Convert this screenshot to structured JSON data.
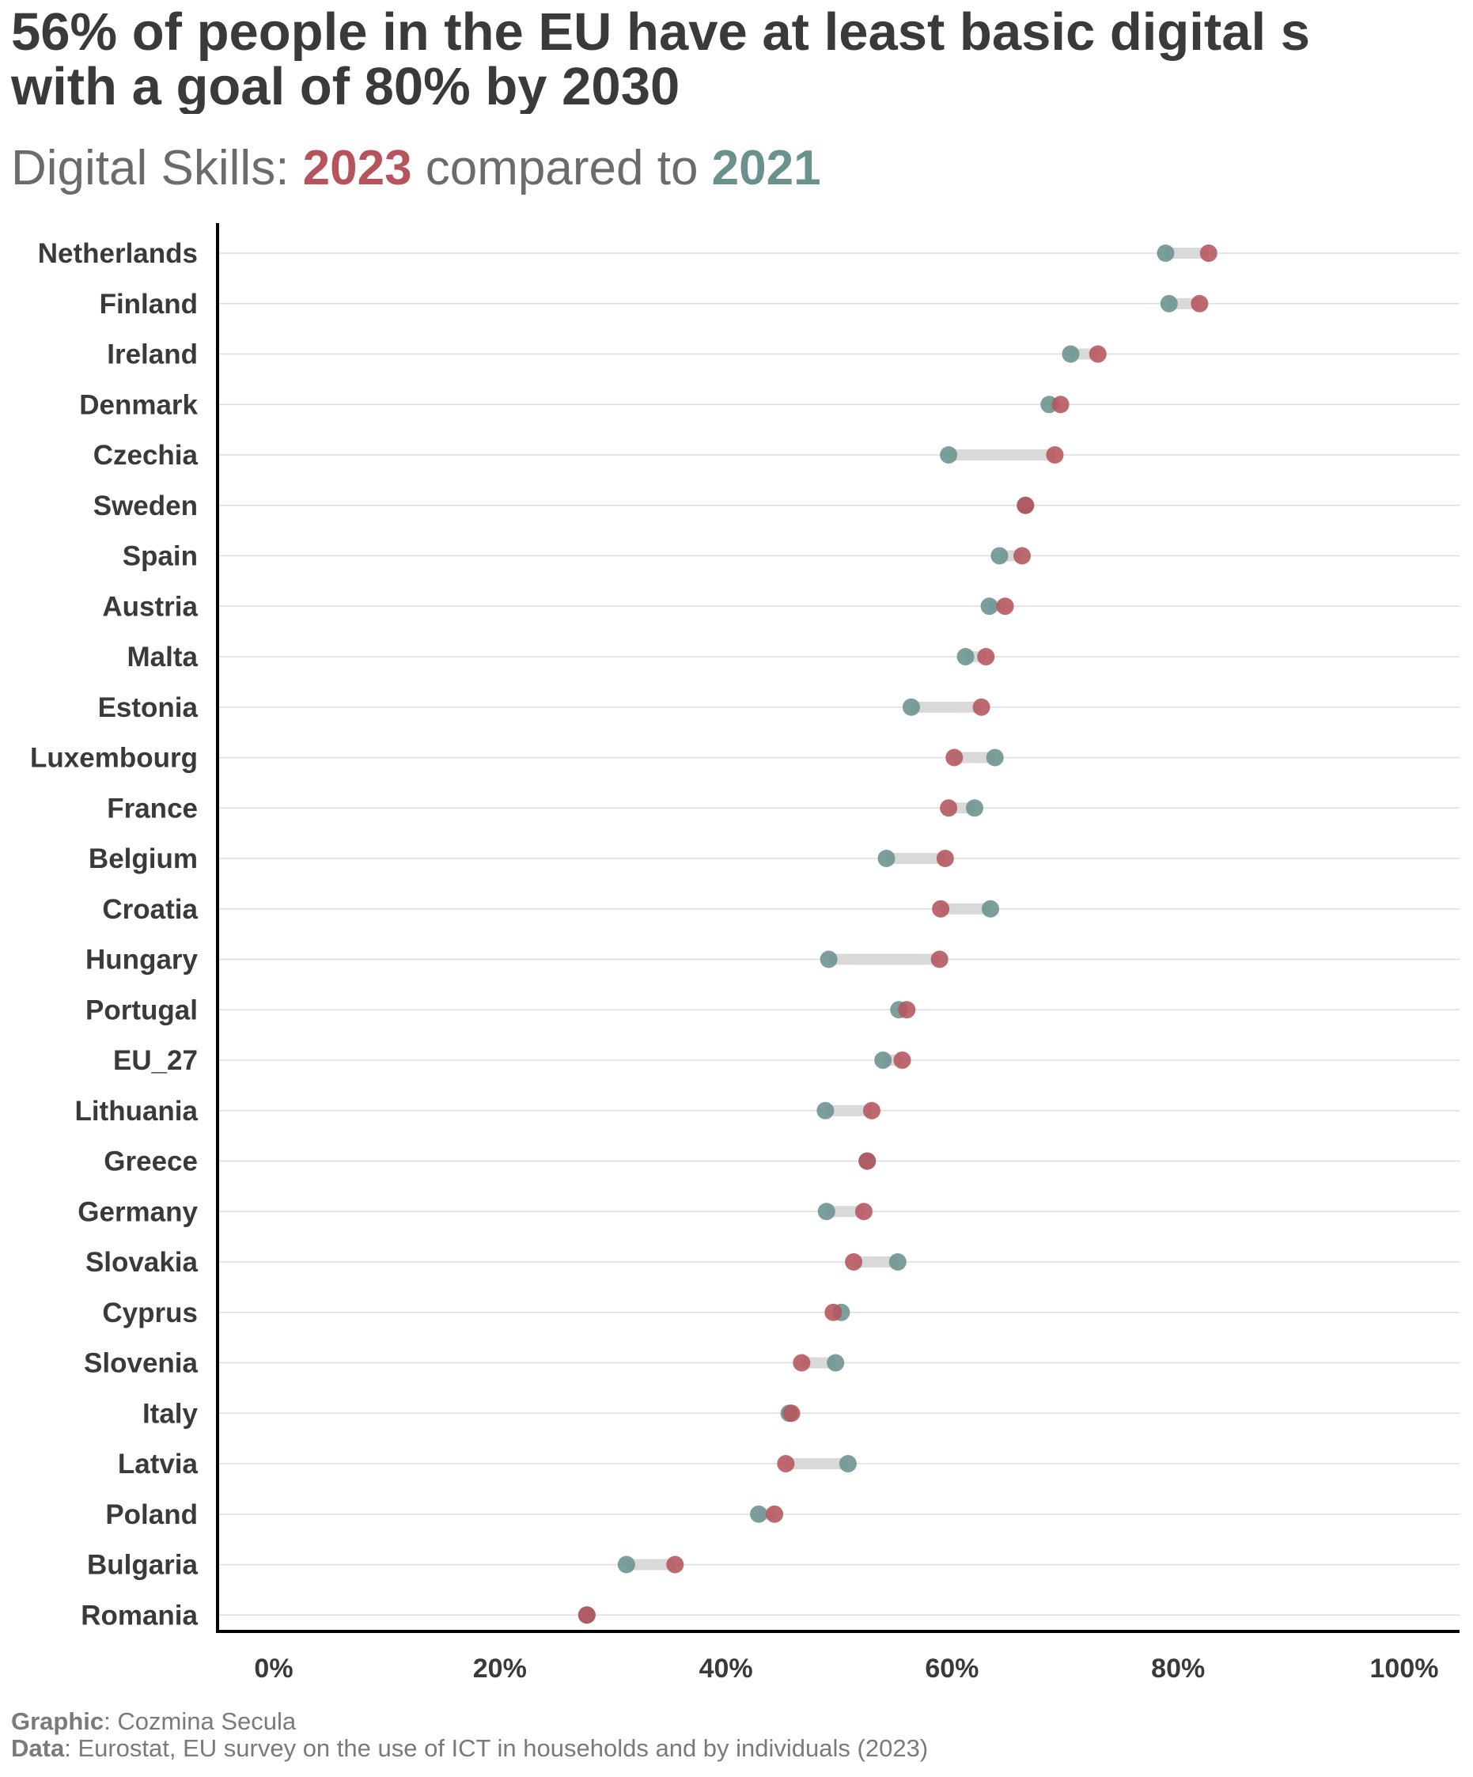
{
  "title": {
    "line1": "56% of people in the EU have at least basic digital s",
    "line2": "with a goal of 80% by 2030"
  },
  "subtitle": {
    "prefix": "Digital Skills: ",
    "year_a": "2023",
    "middle": " compared to ",
    "year_b": "2021"
  },
  "caption": {
    "graphic_label": "Graphic",
    "graphic_text": ": Cozmina Secula",
    "data_label": "Data",
    "data_text": ": Eurostat, EU survey on the use of ICT in households and by individuals (2023)"
  },
  "colors": {
    "y2023": "#b5545c",
    "y2021": "#6a918e",
    "overlap": "#8b2a32",
    "connector": "#d9d9d9",
    "gridline": "#dddddd",
    "axis": "#000000",
    "text": "#3a3a3a"
  },
  "chart_data": {
    "type": "dumbbell",
    "xlim": [
      0,
      100
    ],
    "x_ticks": [
      "0%",
      "20%",
      "40%",
      "60%",
      "80%",
      "100%"
    ],
    "x_tick_values": [
      0,
      20,
      40,
      60,
      80,
      100
    ],
    "grid": "horizontal",
    "series": [
      {
        "name": "2023",
        "color": "#b5545c"
      },
      {
        "name": "2021",
        "color": "#6a918e"
      }
    ],
    "rows": [
      {
        "country": "Netherlands",
        "y2021": 78.9,
        "y2023": 82.7
      },
      {
        "country": "Finland",
        "y2021": 79.2,
        "y2023": 81.9
      },
      {
        "country": "Ireland",
        "y2021": 70.5,
        "y2023": 72.9
      },
      {
        "country": "Denmark",
        "y2021": 68.6,
        "y2023": 69.6
      },
      {
        "country": "Czechia",
        "y2021": 59.7,
        "y2023": 69.1
      },
      {
        "country": "Sweden",
        "y2021": 66.5,
        "y2023": 66.5
      },
      {
        "country": "Spain",
        "y2021": 64.2,
        "y2023": 66.2
      },
      {
        "country": "Austria",
        "y2021": 63.3,
        "y2023": 64.7
      },
      {
        "country": "Malta",
        "y2021": 61.2,
        "y2023": 63.0
      },
      {
        "country": "Estonia",
        "y2021": 56.4,
        "y2023": 62.6
      },
      {
        "country": "Luxembourg",
        "y2021": 63.8,
        "y2023": 60.2
      },
      {
        "country": "France",
        "y2021": 62.0,
        "y2023": 59.7
      },
      {
        "country": "Belgium",
        "y2021": 54.2,
        "y2023": 59.4
      },
      {
        "country": "Croatia",
        "y2021": 63.4,
        "y2023": 59.0
      },
      {
        "country": "Hungary",
        "y2021": 49.1,
        "y2023": 58.9
      },
      {
        "country": "Portugal",
        "y2021": 55.3,
        "y2023": 56.0
      },
      {
        "country": "EU_27",
        "y2021": 53.9,
        "y2023": 55.6
      },
      {
        "country": "Lithuania",
        "y2021": 48.8,
        "y2023": 52.9
      },
      {
        "country": "Greece",
        "y2021": 52.5,
        "y2023": 52.5
      },
      {
        "country": "Germany",
        "y2021": 48.9,
        "y2023": 52.2
      },
      {
        "country": "Slovakia",
        "y2021": 55.2,
        "y2023": 51.3
      },
      {
        "country": "Cyprus",
        "y2021": 50.2,
        "y2023": 49.5
      },
      {
        "country": "Slovenia",
        "y2021": 49.7,
        "y2023": 46.7
      },
      {
        "country": "Italy",
        "y2021": 45.6,
        "y2023": 45.8
      },
      {
        "country": "Latvia",
        "y2021": 50.8,
        "y2023": 45.3
      },
      {
        "country": "Poland",
        "y2021": 42.9,
        "y2023": 44.3
      },
      {
        "country": "Bulgaria",
        "y2021": 31.2,
        "y2023": 35.5
      },
      {
        "country": "Romania",
        "y2021": 27.7,
        "y2023": 27.7
      }
    ]
  }
}
